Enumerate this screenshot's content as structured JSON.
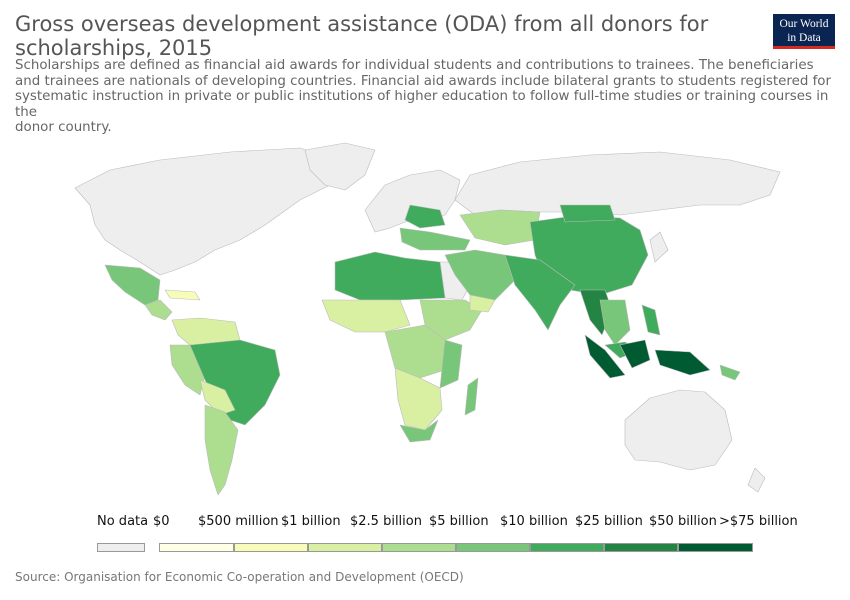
{
  "title": "Gross overseas development assistance (ODA) from all donors for scholarships, 2015",
  "subtitle": "Scholarships are defined as financial aid awards for individual students and contributions to trainees. The beneficiaries\nand trainees are nationals of developing countries. Financial aid awards include bilateral grants to students registered for\nsystematic instruction in private or public institutions of higher education to follow full-time studies or training courses in the\ndonor country.",
  "logo": {
    "line1": "Our World",
    "line2": "in Data"
  },
  "legend": {
    "no_data": {
      "label": "No data",
      "color": "#eeeeee"
    },
    "bins": [
      {
        "label": "$0",
        "color": "#ffffe5"
      },
      {
        "label": "$500 million",
        "color": "#f7fcb9"
      },
      {
        "label": "$1 billion",
        "color": "#d9f0a3"
      },
      {
        "label": "$2.5 billion",
        "color": "#addd8e"
      },
      {
        "label": "$5 billion",
        "color": "#78c679"
      },
      {
        "label": "$10 billion",
        "color": "#41ab5d"
      },
      {
        "label": "$25 billion",
        "color": "#238443"
      },
      {
        "label": "$50 billion",
        "color": "#005a32"
      }
    ],
    "top_label": ">$75 billion"
  },
  "source": "Source: Organisation for Economic Co-operation and Development (OECD)"
}
